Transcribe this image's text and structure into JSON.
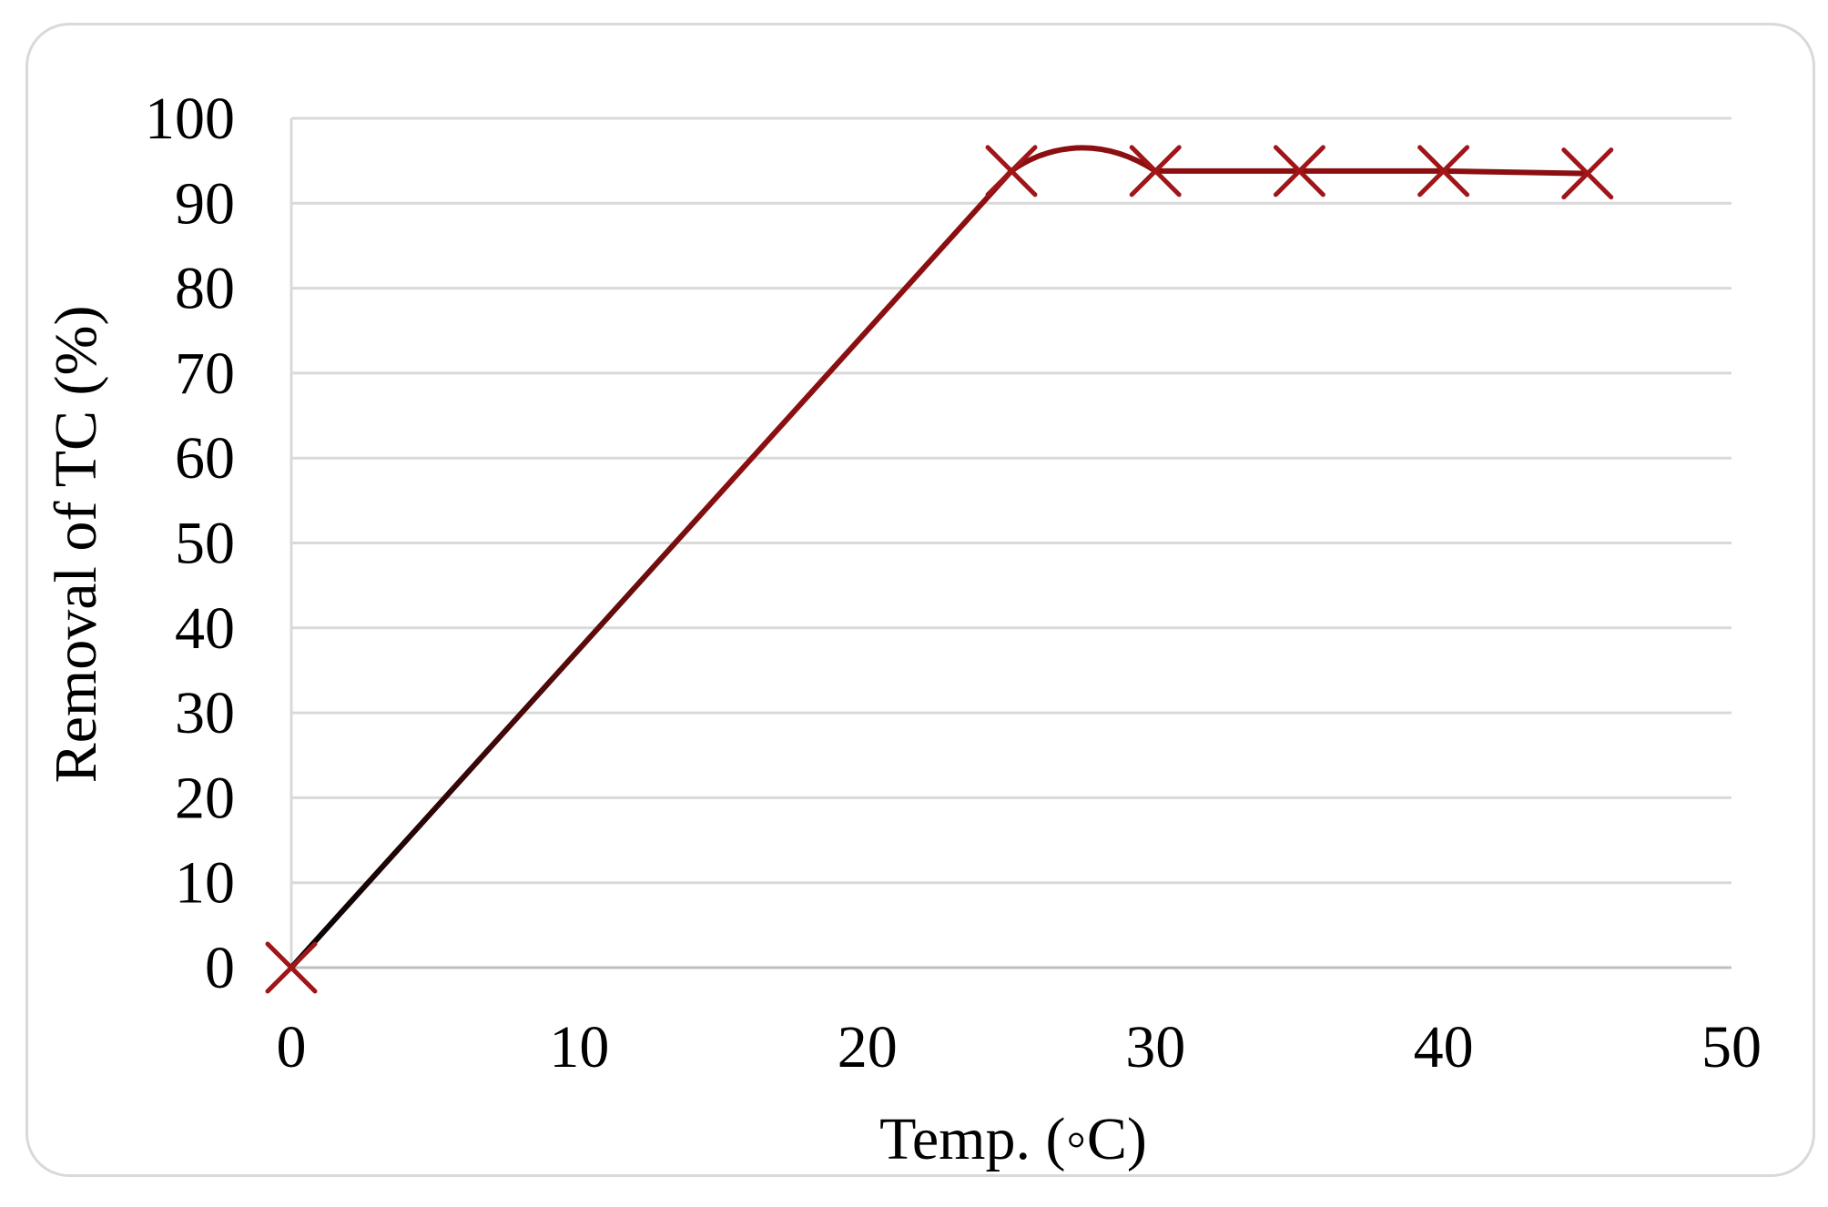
{
  "chart_data": {
    "type": "line",
    "title": "",
    "xlabel": "Temp. (◦C)",
    "ylabel": "Removal of TC (%)",
    "x": [
      0,
      25,
      30,
      35,
      40,
      45
    ],
    "series": [
      {
        "values": [
          0,
          93.8,
          93.8,
          93.8,
          93.8,
          93.5
        ]
      }
    ],
    "xlim": [
      0,
      50
    ],
    "ylim": [
      0,
      100
    ],
    "xticks": [
      "0",
      "10",
      "20",
      "30",
      "40",
      "50"
    ],
    "yticks": [
      "0",
      "10",
      "20",
      "30",
      "40",
      "50",
      "60",
      "70",
      "80",
      "90",
      "100"
    ],
    "grid": "horizontal",
    "marker": "x",
    "smoothed": true,
    "line_gradient": [
      "#000000",
      "#8b0f10"
    ],
    "marker_color": "#a01518",
    "gridline_color": "#d9d9d9"
  }
}
